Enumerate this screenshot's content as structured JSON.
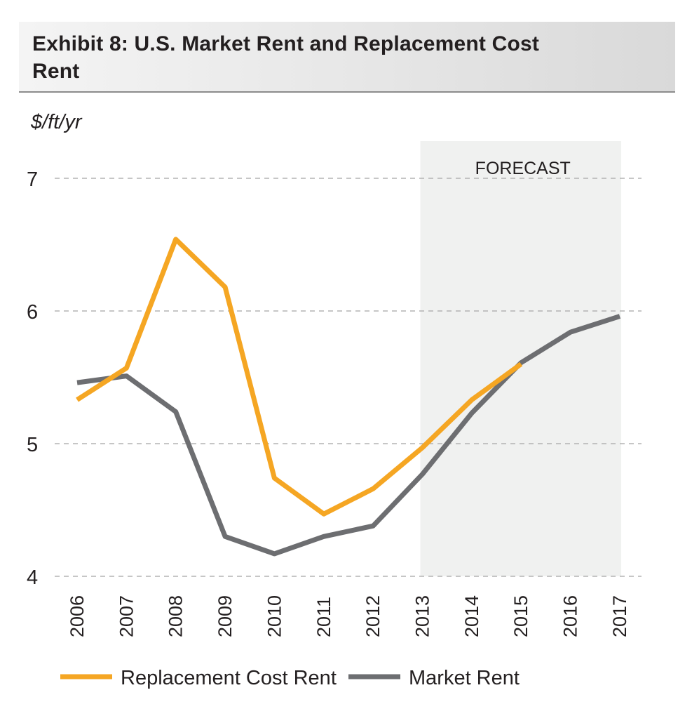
{
  "chart_data": {
    "type": "line",
    "title": "Exhibit 8: U.S. Market Rent and Replacement Cost Rent",
    "ylabel": "$/ft/yr",
    "xlabel": "",
    "categories": [
      "2006",
      "2007",
      "2008",
      "2009",
      "2010",
      "2011",
      "2012",
      "2013",
      "2014",
      "2015",
      "2016",
      "2017"
    ],
    "ylim": [
      4,
      7
    ],
    "yticks": [
      "7",
      "6",
      "5",
      "4"
    ],
    "ytick_values": [
      7,
      6,
      5,
      4
    ],
    "grid": true,
    "forecast": {
      "label": "FORECAST",
      "start": "2013",
      "end": "2017"
    },
    "series": [
      {
        "name": "Replacement Cost Rent",
        "color": "#f5a623",
        "values": [
          5.33,
          5.57,
          6.54,
          6.18,
          4.74,
          4.47,
          4.66,
          4.97,
          5.33,
          5.6,
          null,
          null
        ]
      },
      {
        "name": "Market Rent",
        "color": "#6d6e71",
        "values": [
          5.46,
          5.51,
          5.24,
          4.3,
          4.17,
          4.3,
          4.38,
          4.77,
          5.23,
          5.61,
          5.84,
          5.96
        ]
      }
    ],
    "legend_position": "bottom"
  }
}
